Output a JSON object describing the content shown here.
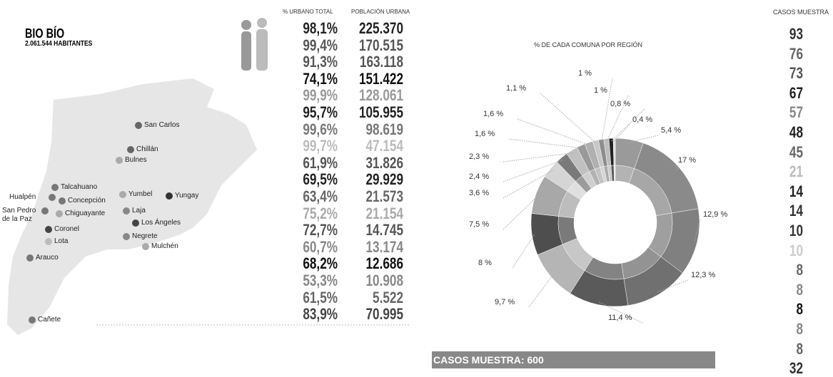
{
  "header": {
    "title": "BIO BÍO",
    "subtitle": "2.061.544 HABITANTES"
  },
  "map": {
    "communes": [
      {
        "label": "San Carlos",
        "color": "#666666"
      },
      {
        "label": "Chillán",
        "color": "#666666"
      },
      {
        "label": "Bulnes",
        "color": "#aaaaaa"
      },
      {
        "label": "Talcahuano",
        "color": "#777777"
      },
      {
        "label": "Hualpén",
        "color": "#777777"
      },
      {
        "label": "Concepción",
        "color": "#777777"
      },
      {
        "label": "San Pedro de la Paz",
        "color": "#777777"
      },
      {
        "label": "Chiguayante",
        "color": "#aaaaaa"
      },
      {
        "label": "Coronel",
        "color": "#444444"
      },
      {
        "label": "Lota",
        "color": "#bbbbbb"
      },
      {
        "label": "Arauco",
        "color": "#777777"
      },
      {
        "label": "Yumbel",
        "color": "#aaaaaa"
      },
      {
        "label": "Yungay",
        "color": "#333333"
      },
      {
        "label": "Laja",
        "color": "#888888"
      },
      {
        "label": "Los Ángeles",
        "color": "#444444"
      },
      {
        "label": "Negrete",
        "color": "#888888"
      },
      {
        "label": "Mulchén",
        "color": "#aaaaaa"
      },
      {
        "label": "Cañete",
        "color": "#777777"
      }
    ]
  },
  "table": {
    "columns": [
      "% URBANO TOTAL",
      "POBLACIÓN URBANA"
    ],
    "rows": [
      {
        "cells": [
          "98,1%",
          "225.370"
        ],
        "color": "#222222"
      },
      {
        "cells": [
          "99,4%",
          "170.515"
        ],
        "color": "#555555"
      },
      {
        "cells": [
          "91,3%",
          "163.118"
        ],
        "color": "#555555"
      },
      {
        "cells": [
          "74,1%",
          "151.422"
        ],
        "color": "#111111"
      },
      {
        "cells": [
          "99,9%",
          "128.061"
        ],
        "color": "#999999"
      },
      {
        "cells": [
          "95,7%",
          "105.955"
        ],
        "color": "#222222"
      },
      {
        "cells": [
          "99,6%",
          "98.619"
        ],
        "color": "#777777"
      },
      {
        "cells": [
          "99,7%",
          "47.154"
        ],
        "color": "#bbbbbb"
      },
      {
        "cells": [
          "61,9%",
          "31.826"
        ],
        "color": "#555555"
      },
      {
        "cells": [
          "69,5%",
          "29.929"
        ],
        "color": "#222222"
      },
      {
        "cells": [
          "63,4%",
          "21.573"
        ],
        "color": "#666666"
      },
      {
        "cells": [
          "75,2%",
          "21.154"
        ],
        "color": "#aaaaaa"
      },
      {
        "cells": [
          "72,7%",
          "14.745"
        ],
        "color": "#555555"
      },
      {
        "cells": [
          "60,7%",
          "13.174"
        ],
        "color": "#888888"
      },
      {
        "cells": [
          "68,2%",
          "12.686"
        ],
        "color": "#111111"
      },
      {
        "cells": [
          "53,3%",
          "10.908"
        ],
        "color": "#888888"
      },
      {
        "cells": [
          "61,5%",
          "5.522"
        ],
        "color": "#666666"
      },
      {
        "cells": [
          "83,9%",
          "70.995"
        ],
        "color": "#444444"
      }
    ]
  },
  "donut": {
    "title": "% DE CADA COMUNA POR REGIÓN",
    "values": [
      5.4,
      17,
      12.9,
      12.3,
      11.4,
      9.7,
      8,
      7.5,
      3.6,
      2.4,
      2.3,
      1.6,
      1.6,
      1.1,
      1,
      1,
      0.8,
      0.4
    ],
    "value_labels": [
      "5,4 %",
      "17 %",
      "12,9 %",
      "12,3 %",
      "11,4 %",
      "9,7 %",
      "8 %",
      "7,5 %",
      "3,6 %",
      "2,4 %",
      "2,3 %",
      "1,6 %",
      "1,6 %",
      "1,1 %",
      "1 %",
      "1 %",
      "0,8 %",
      "0,4 %"
    ],
    "colors": [
      "#9a9a9a",
      "#8a8a8a",
      "#808080",
      "#707070",
      "#5a5a5a",
      "#b5b5b5",
      "#4e4e4e",
      "#a8a8a8",
      "#d5d5d5",
      "#7a7a7a",
      "#c0c0c0",
      "#999999",
      "#b0b0b0",
      "#c8c8c8",
      "#8c8c8c",
      "#bdbdbd",
      "#222222",
      "#dddddd"
    ]
  },
  "samples": {
    "title": "CASOS MUESTRA",
    "values": [
      93,
      76,
      73,
      67,
      57,
      48,
      45,
      21,
      14,
      14,
      10,
      10,
      8,
      8,
      8,
      8,
      8,
      32
    ],
    "colors": [
      "#333333",
      "#666666",
      "#555555",
      "#222222",
      "#888888",
      "#222222",
      "#666666",
      "#bbbbbb",
      "#222222",
      "#333333",
      "#333333",
      "#cccccc",
      "#666666",
      "#888888",
      "#111111",
      "#888888",
      "#666666",
      "#333333"
    ],
    "total": "CASOS MUESTRA: 600"
  }
}
